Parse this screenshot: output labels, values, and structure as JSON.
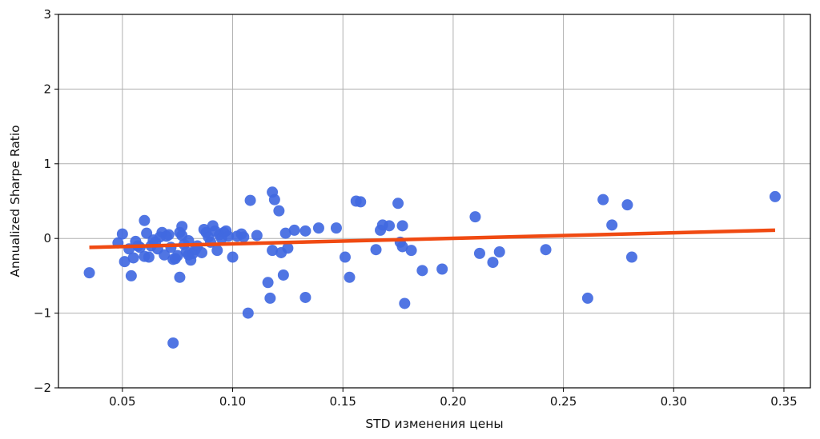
{
  "chart_data": {
    "type": "scatter",
    "title": "",
    "xlabel": "STD изменения цены",
    "ylabel": "Annualized Sharpe Ratio",
    "xlim": [
      0.021,
      0.362
    ],
    "ylim": [
      -2,
      3
    ],
    "xticks": [
      0.05,
      0.1,
      0.15,
      0.2,
      0.25,
      0.3,
      0.35
    ],
    "xtick_labels": [
      "0.05",
      "0.10",
      "0.15",
      "0.20",
      "0.25",
      "0.30",
      "0.35"
    ],
    "yticks": [
      -2,
      -1,
      0,
      1,
      2,
      3
    ],
    "ytick_labels": [
      "−2",
      "−1",
      "0",
      "1",
      "2",
      "3"
    ],
    "grid": true,
    "colors": {
      "points": "#4169e1",
      "trend": "#f04a12",
      "grid": "#b0b0b0",
      "axis": "#000000"
    },
    "series": [
      {
        "points": [
          [
            0.035,
            -0.46
          ],
          [
            0.048,
            -0.06
          ],
          [
            0.05,
            0.06
          ],
          [
            0.051,
            -0.31
          ],
          [
            0.053,
            -0.14
          ],
          [
            0.054,
            -0.5
          ],
          [
            0.055,
            -0.26
          ],
          [
            0.056,
            -0.04
          ],
          [
            0.057,
            -0.1
          ],
          [
            0.058,
            -0.12
          ],
          [
            0.06,
            0.24
          ],
          [
            0.06,
            -0.24
          ],
          [
            0.061,
            0.07
          ],
          [
            0.062,
            -0.25
          ],
          [
            0.063,
            -0.1
          ],
          [
            0.064,
            -0.02
          ],
          [
            0.065,
            -0.05
          ],
          [
            0.066,
            -0.14
          ],
          [
            0.067,
            0.02
          ],
          [
            0.068,
            0.08
          ],
          [
            0.069,
            -0.22
          ],
          [
            0.07,
            0.03
          ],
          [
            0.071,
            0.05
          ],
          [
            0.072,
            -0.12
          ],
          [
            0.073,
            -0.28
          ],
          [
            0.073,
            -1.4
          ],
          [
            0.074,
            -0.27
          ],
          [
            0.075,
            -0.23
          ],
          [
            0.076,
            0.08
          ],
          [
            0.076,
            -0.52
          ],
          [
            0.077,
            0.16
          ],
          [
            0.077,
            0.04
          ],
          [
            0.078,
            -0.08
          ],
          [
            0.079,
            -0.18
          ],
          [
            0.08,
            -0.22
          ],
          [
            0.08,
            -0.03
          ],
          [
            0.081,
            -0.29
          ],
          [
            0.082,
            -0.2
          ],
          [
            0.083,
            -0.15
          ],
          [
            0.084,
            -0.1
          ],
          [
            0.086,
            -0.19
          ],
          [
            0.087,
            0.12
          ],
          [
            0.088,
            0.08
          ],
          [
            0.089,
            0.02
          ],
          [
            0.09,
            -0.05
          ],
          [
            0.091,
            0.17
          ],
          [
            0.092,
            0.1
          ],
          [
            0.093,
            -0.16
          ],
          [
            0.094,
            0.05
          ],
          [
            0.095,
            0.0
          ],
          [
            0.096,
            0.08
          ],
          [
            0.097,
            0.1
          ],
          [
            0.098,
            0.03
          ],
          [
            0.1,
            -0.25
          ],
          [
            0.102,
            0.03
          ],
          [
            0.104,
            0.06
          ],
          [
            0.105,
            0.02
          ],
          [
            0.107,
            -1.0
          ],
          [
            0.108,
            0.51
          ],
          [
            0.111,
            0.04
          ],
          [
            0.116,
            -0.59
          ],
          [
            0.117,
            -0.8
          ],
          [
            0.118,
            0.62
          ],
          [
            0.118,
            -0.16
          ],
          [
            0.119,
            0.52
          ],
          [
            0.121,
            0.37
          ],
          [
            0.122,
            -0.19
          ],
          [
            0.123,
            -0.49
          ],
          [
            0.124,
            0.07
          ],
          [
            0.125,
            -0.13
          ],
          [
            0.128,
            0.11
          ],
          [
            0.133,
            0.1
          ],
          [
            0.133,
            -0.79
          ],
          [
            0.139,
            0.14
          ],
          [
            0.147,
            0.14
          ],
          [
            0.151,
            -0.25
          ],
          [
            0.153,
            -0.52
          ],
          [
            0.156,
            0.5
          ],
          [
            0.158,
            0.49
          ],
          [
            0.165,
            -0.15
          ],
          [
            0.167,
            0.11
          ],
          [
            0.168,
            0.18
          ],
          [
            0.171,
            0.17
          ],
          [
            0.175,
            0.47
          ],
          [
            0.176,
            -0.05
          ],
          [
            0.177,
            0.17
          ],
          [
            0.177,
            -0.11
          ],
          [
            0.178,
            -0.87
          ],
          [
            0.181,
            -0.16
          ],
          [
            0.186,
            -0.43
          ],
          [
            0.195,
            -0.41
          ],
          [
            0.21,
            0.29
          ],
          [
            0.212,
            -0.2
          ],
          [
            0.218,
            -0.32
          ],
          [
            0.221,
            -0.18
          ],
          [
            0.242,
            -0.15
          ],
          [
            0.261,
            -0.8
          ],
          [
            0.268,
            0.52
          ],
          [
            0.272,
            0.18
          ],
          [
            0.279,
            0.45
          ],
          [
            0.281,
            -0.25
          ],
          [
            0.346,
            0.56
          ]
        ]
      }
    ],
    "trendline": {
      "x": [
        0.035,
        0.346
      ],
      "y": [
        -0.12,
        0.11
      ]
    }
  }
}
